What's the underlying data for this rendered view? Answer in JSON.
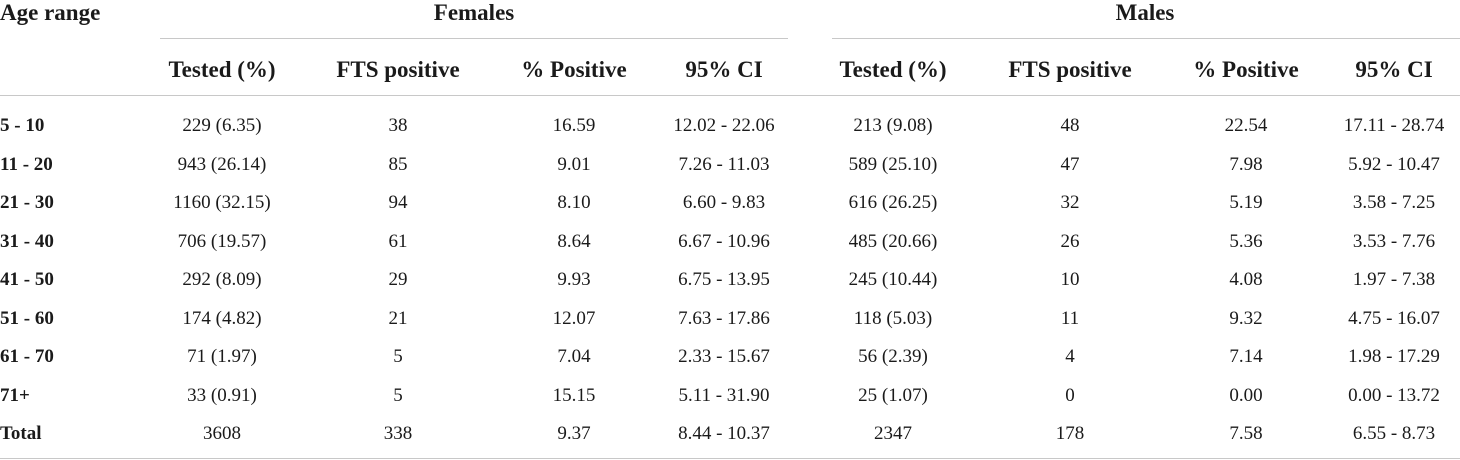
{
  "table": {
    "stub_header": "Age range",
    "group_headers": {
      "females": "Females",
      "males": "Males"
    },
    "column_headers": [
      "Tested (%)",
      "FTS positive",
      "% Positive",
      "95% CI",
      "Tested (%)",
      "FTS positive",
      "% Positive",
      "95% CI"
    ],
    "rows": [
      {
        "age": "5 - 10",
        "cells": [
          "229 (6.35)",
          "38",
          "16.59",
          "12.02 - 22.06",
          "213 (9.08)",
          "48",
          "22.54",
          "17.11 - 28.74"
        ]
      },
      {
        "age": "11 - 20",
        "cells": [
          "943 (26.14)",
          "85",
          "9.01",
          "7.26 - 11.03",
          "589 (25.10)",
          "47",
          "7.98",
          "5.92 - 10.47"
        ]
      },
      {
        "age": "21 - 30",
        "cells": [
          "1160 (32.15)",
          "94",
          "8.10",
          "6.60 - 9.83",
          "616 (26.25)",
          "32",
          "5.19",
          "3.58 - 7.25"
        ]
      },
      {
        "age": "31 - 40",
        "cells": [
          "706 (19.57)",
          "61",
          "8.64",
          "6.67 - 10.96",
          "485 (20.66)",
          "26",
          "5.36",
          "3.53 - 7.76"
        ]
      },
      {
        "age": "41 - 50",
        "cells": [
          "292 (8.09)",
          "29",
          "9.93",
          "6.75 - 13.95",
          "245 (10.44)",
          "10",
          "4.08",
          "1.97 - 7.38"
        ]
      },
      {
        "age": "51 - 60",
        "cells": [
          "174 (4.82)",
          "21",
          "12.07",
          "7.63 - 17.86",
          "118 (5.03)",
          "11",
          "9.32",
          "4.75 - 16.07"
        ]
      },
      {
        "age": "61 - 70",
        "cells": [
          "71 (1.97)",
          "5",
          "7.04",
          "2.33 - 15.67",
          "56 (2.39)",
          "4",
          "7.14",
          "1.98 - 17.29"
        ]
      },
      {
        "age": "71+",
        "cells": [
          "33 (0.91)",
          "5",
          "15.15",
          "5.11 - 31.90",
          "25 (1.07)",
          "0",
          "0.00",
          "0.00 - 13.72"
        ]
      },
      {
        "age": "Total",
        "cells": [
          "3608",
          "338",
          "9.37",
          "8.44 - 10.37",
          "2347",
          "178",
          "7.58",
          "6.55 - 8.73"
        ]
      }
    ]
  }
}
